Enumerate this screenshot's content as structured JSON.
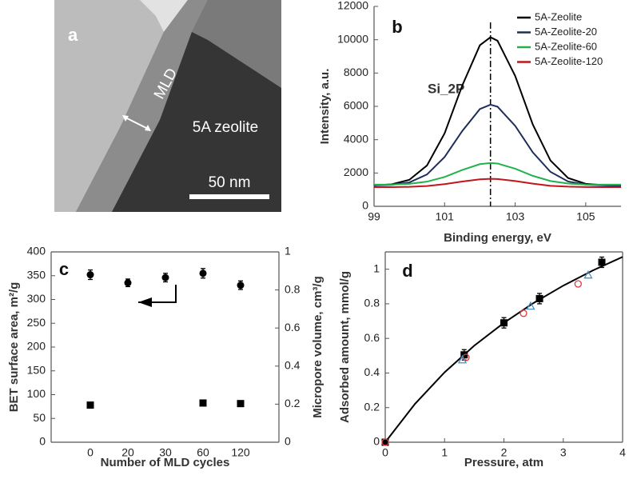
{
  "chart_data": [
    {
      "type": "image",
      "label": "a",
      "annotations": [
        "MLD",
        "5A zeolite",
        "50 nm"
      ]
    },
    {
      "type": "line",
      "label": "b",
      "annotation": "Si_2P",
      "xlabel": "Binding energy, eV",
      "ylabel": "Intensity, a.u.",
      "x": [
        99,
        99.5,
        100,
        100.5,
        101,
        101.5,
        102,
        102.3,
        102.5,
        103,
        103.5,
        104,
        104.5,
        105,
        105.5,
        106
      ],
      "xlim": [
        99,
        106
      ],
      "xticks": [
        99,
        101,
        103,
        105
      ],
      "ylim": [
        0,
        12000
      ],
      "yticks": [
        0,
        2000,
        4000,
        6000,
        8000,
        10000,
        12000
      ],
      "vline": 102.3,
      "legend": "upper right",
      "series": [
        {
          "name": "5A-Zeolite",
          "color": "#000000",
          "values": [
            1260,
            1320,
            1590,
            2450,
            4380,
            7250,
            9670,
            10150,
            9940,
            7830,
            4910,
            2750,
            1700,
            1350,
            1270,
            1250
          ]
        },
        {
          "name": "5A-Zeolite-20",
          "color": "#1f2d5a",
          "values": [
            1260,
            1290,
            1430,
            1910,
            2960,
            4520,
            5840,
            6100,
            5980,
            4830,
            3240,
            2070,
            1490,
            1300,
            1260,
            1250
          ]
        },
        {
          "name": "5A-Zeolite-60",
          "color": "#22b14c",
          "values": [
            1300,
            1310,
            1350,
            1480,
            1760,
            2180,
            2530,
            2600,
            2570,
            2260,
            1830,
            1520,
            1370,
            1310,
            1300,
            1300
          ]
        },
        {
          "name": "5A-Zeolite-120",
          "color": "#c0161c",
          "values": [
            1150,
            1150,
            1170,
            1220,
            1330,
            1490,
            1620,
            1650,
            1640,
            1520,
            1360,
            1230,
            1180,
            1160,
            1150,
            1150
          ]
        }
      ]
    },
    {
      "type": "scatter",
      "label": "c",
      "xlabel": "Number of MLD cycles",
      "ylabel": "BET surface area, m²/g",
      "y2label": "Micropore volume, cm³/g",
      "categories": [
        "0",
        "20",
        "30",
        "60",
        "120"
      ],
      "ylim": [
        0,
        400
      ],
      "yticks": [
        0,
        50,
        100,
        150,
        200,
        250,
        300,
        350,
        400
      ],
      "y2lim": [
        0,
        1
      ],
      "y2ticks": [
        0,
        0.2,
        0.4,
        0.6,
        0.8,
        1
      ],
      "series": [
        {
          "color": "#000000",
          "marker": "circle",
          "values": [
            352,
            335,
            346,
            355,
            330
          ],
          "errors": [
            10,
            8,
            9,
            10,
            9
          ]
        },
        {
          "color": "#000000",
          "marker": "square",
          "axis": "y2",
          "values": [
            0.195,
            null,
            null,
            0.206,
            0.203
          ]
        }
      ]
    },
    {
      "type": "scatter",
      "label": "d",
      "xlabel": "Pressure, atm",
      "ylabel": "Adsorbed amount, mmol/g",
      "xlim": [
        0,
        4
      ],
      "xticks": [
        0,
        1,
        2,
        3,
        4
      ],
      "ylim": [
        0,
        1.1
      ],
      "yticks": [
        0,
        0.2,
        0.4,
        0.6,
        0.8,
        1
      ],
      "series": [
        {
          "color": "#000000",
          "marker": "line",
          "x": [
            0,
            0.5,
            1,
            1.5,
            2,
            2.5,
            3,
            3.5,
            4
          ],
          "values": [
            0,
            0.221,
            0.404,
            0.558,
            0.69,
            0.805,
            0.905,
            0.993,
            1.071
          ]
        },
        {
          "color": "#000000",
          "marker": "square",
          "x": [
            0,
            1.33,
            2,
            2.6,
            3.65
          ],
          "values": [
            0,
            0.505,
            0.69,
            0.83,
            1.04
          ],
          "errors": [
            null,
            0.03,
            0.03,
            0.03,
            0.03
          ]
        },
        {
          "color": "#e03c3c",
          "marker": "circle-open",
          "x": [
            0,
            1.36,
            2.33,
            3.25
          ],
          "values": [
            0,
            0.49,
            0.745,
            0.915
          ]
        },
        {
          "color": "#4a90c8",
          "marker": "triangle-open",
          "x": [
            1.3,
            2.45,
            3.42
          ],
          "values": [
            0.475,
            0.785,
            0.965
          ]
        }
      ]
    }
  ]
}
